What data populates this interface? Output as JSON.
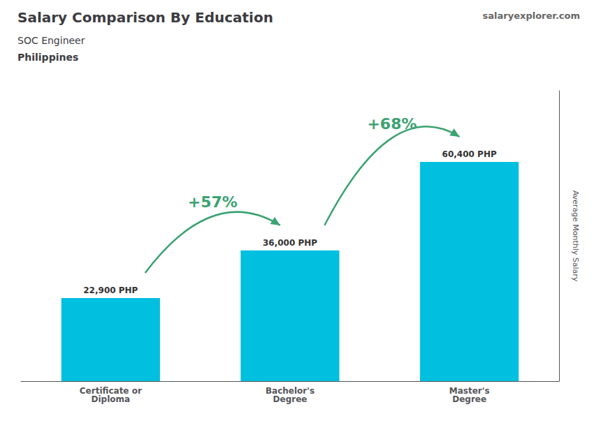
{
  "chart_data": {
    "type": "bar",
    "title": "Salary Comparison By Education",
    "subtitle": [
      "SOC Engineer",
      "Philippines"
    ],
    "ylabel": "Average Monthly Salary",
    "categories": [
      "Certificate or\nDiploma",
      "Bachelor's\nDegree",
      "Master's\nDegree"
    ],
    "values": [
      22900,
      36000,
      60400
    ],
    "value_labels": [
      "22,900 PHP",
      "36,000 PHP",
      "60,400 PHP"
    ],
    "data_labels": true,
    "color": "#00bfdf",
    "ylim": [
      0,
      80000
    ],
    "tick_labels": "x",
    "grid": false,
    "annotations": [
      {
        "text": "+57%",
        "from": "Certificate or\nDiploma",
        "to": "Bachelor's\nDegree"
      },
      {
        "text": "+68%",
        "from": "Bachelor's\nDegree",
        "to": "Master's\nDegree"
      },
      {
        "text": "salary"
      },
      {
        "text": "explorer"
      },
      {
        "text": ".com"
      }
    ]
  }
}
